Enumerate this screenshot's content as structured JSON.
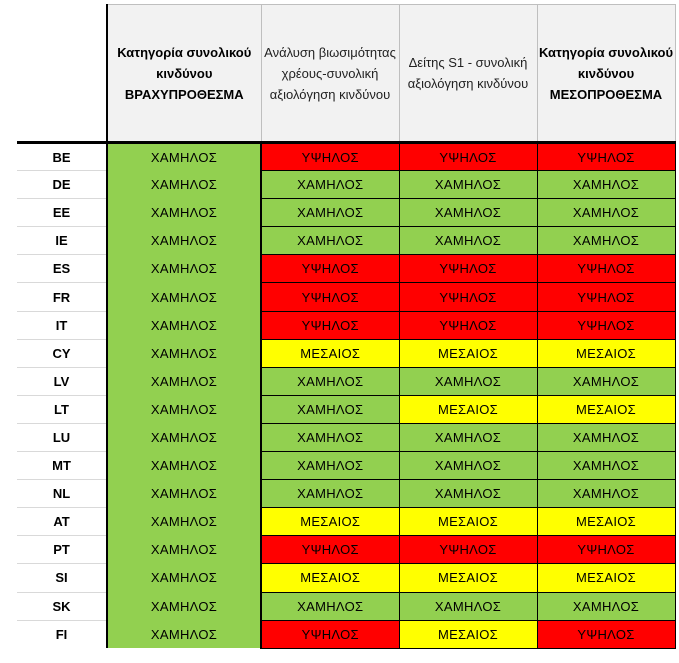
{
  "header": {
    "col1": "Κατηγορία συνολικού κινδύνου ΒΡΑΧΥΠΡΟΘΕΣΜΑ",
    "col2": "Ανάλυση βιωσιμότητας χρέους-συνολική αξιολόγηση κινδύνου",
    "col3": "Δείτης S1 - συνολική αξιολόγηση κινδύνου",
    "col4": "Κατηγορία συνολικού κινδύνου ΜΕΣΟΠΡΟΘΕΣΜΑ"
  },
  "labels": {
    "low": "ΧΑΜΗΛΟΣ",
    "high": "ΥΨΗΛΟΣ",
    "mid": "ΜΕΣΑΙΟΣ"
  },
  "colors": {
    "low": "#92d050",
    "high": "#ff0000",
    "mid": "#ffff00"
  },
  "rows": [
    {
      "country": "BE",
      "short": "low",
      "dsa": "high",
      "s1": "high",
      "medium": "high"
    },
    {
      "country": "DE",
      "short": "low",
      "dsa": "low",
      "s1": "low",
      "medium": "low"
    },
    {
      "country": "EE",
      "short": "low",
      "dsa": "low",
      "s1": "low",
      "medium": "low"
    },
    {
      "country": "IE",
      "short": "low",
      "dsa": "low",
      "s1": "low",
      "medium": "low"
    },
    {
      "country": "ES",
      "short": "low",
      "dsa": "high",
      "s1": "high",
      "medium": "high"
    },
    {
      "country": "FR",
      "short": "low",
      "dsa": "high",
      "s1": "high",
      "medium": "high"
    },
    {
      "country": "IT",
      "short": "low",
      "dsa": "high",
      "s1": "high",
      "medium": "high"
    },
    {
      "country": "CY",
      "short": "low",
      "dsa": "mid",
      "s1": "mid",
      "medium": "mid"
    },
    {
      "country": "LV",
      "short": "low",
      "dsa": "low",
      "s1": "low",
      "medium": "low"
    },
    {
      "country": "LT",
      "short": "low",
      "dsa": "low",
      "s1": "mid",
      "medium": "mid"
    },
    {
      "country": "LU",
      "short": "low",
      "dsa": "low",
      "s1": "low",
      "medium": "low"
    },
    {
      "country": "MT",
      "short": "low",
      "dsa": "low",
      "s1": "low",
      "medium": "low"
    },
    {
      "country": "NL",
      "short": "low",
      "dsa": "low",
      "s1": "low",
      "medium": "low"
    },
    {
      "country": "AT",
      "short": "low",
      "dsa": "mid",
      "s1": "mid",
      "medium": "mid"
    },
    {
      "country": "PT",
      "short": "low",
      "dsa": "high",
      "s1": "high",
      "medium": "high"
    },
    {
      "country": "SI",
      "short": "low",
      "dsa": "mid",
      "s1": "mid",
      "medium": "mid"
    },
    {
      "country": "SK",
      "short": "low",
      "dsa": "low",
      "s1": "low",
      "medium": "low"
    },
    {
      "country": "FI",
      "short": "low",
      "dsa": "high",
      "s1": "mid",
      "medium": "high"
    }
  ]
}
